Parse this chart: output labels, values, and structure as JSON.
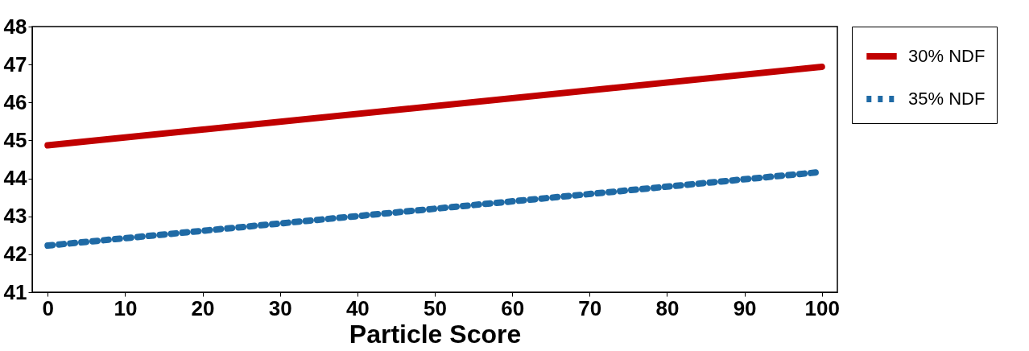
{
  "chart_data": {
    "type": "line",
    "xlabel": "Particle Score",
    "x": [
      0,
      100
    ],
    "xlim": [
      -2,
      102
    ],
    "xticks": [
      0,
      10,
      20,
      30,
      40,
      50,
      60,
      70,
      80,
      90,
      100
    ],
    "ylim": [
      41,
      48
    ],
    "yticks": [
      41,
      42,
      43,
      44,
      45,
      46,
      47,
      48
    ],
    "grid": false,
    "legend": "top right",
    "series": [
      {
        "name": "30% NDF",
        "color": "#c00000",
        "line_style": "solid",
        "values": [
          44.87,
          46.94
        ]
      },
      {
        "name": "35% NDF",
        "color": "#1f6aa5",
        "line_style": "dotted",
        "values": [
          42.23,
          44.17
        ]
      }
    ]
  }
}
